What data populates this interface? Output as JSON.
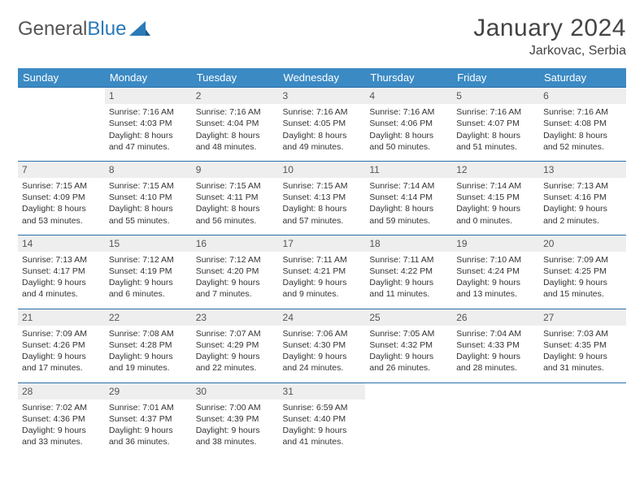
{
  "logo": {
    "text1": "General",
    "text2": "Blue"
  },
  "title": "January 2024",
  "location": "Jarkovac, Serbia",
  "headers": [
    "Sunday",
    "Monday",
    "Tuesday",
    "Wednesday",
    "Thursday",
    "Friday",
    "Saturday"
  ],
  "colors": {
    "header_bg": "#3b8ac4",
    "header_fg": "#ffffff",
    "border": "#2a6ea8",
    "daynum_bg": "#eeeeee",
    "text": "#333333",
    "background": "#ffffff"
  },
  "days": [
    {
      "n": "",
      "sunrise": "",
      "sunset": "",
      "daylight1": "",
      "daylight2": "",
      "empty": true
    },
    {
      "n": "1",
      "sunrise": "Sunrise: 7:16 AM",
      "sunset": "Sunset: 4:03 PM",
      "daylight1": "Daylight: 8 hours",
      "daylight2": "and 47 minutes."
    },
    {
      "n": "2",
      "sunrise": "Sunrise: 7:16 AM",
      "sunset": "Sunset: 4:04 PM",
      "daylight1": "Daylight: 8 hours",
      "daylight2": "and 48 minutes."
    },
    {
      "n": "3",
      "sunrise": "Sunrise: 7:16 AM",
      "sunset": "Sunset: 4:05 PM",
      "daylight1": "Daylight: 8 hours",
      "daylight2": "and 49 minutes."
    },
    {
      "n": "4",
      "sunrise": "Sunrise: 7:16 AM",
      "sunset": "Sunset: 4:06 PM",
      "daylight1": "Daylight: 8 hours",
      "daylight2": "and 50 minutes."
    },
    {
      "n": "5",
      "sunrise": "Sunrise: 7:16 AM",
      "sunset": "Sunset: 4:07 PM",
      "daylight1": "Daylight: 8 hours",
      "daylight2": "and 51 minutes."
    },
    {
      "n": "6",
      "sunrise": "Sunrise: 7:16 AM",
      "sunset": "Sunset: 4:08 PM",
      "daylight1": "Daylight: 8 hours",
      "daylight2": "and 52 minutes."
    },
    {
      "n": "7",
      "sunrise": "Sunrise: 7:15 AM",
      "sunset": "Sunset: 4:09 PM",
      "daylight1": "Daylight: 8 hours",
      "daylight2": "and 53 minutes."
    },
    {
      "n": "8",
      "sunrise": "Sunrise: 7:15 AM",
      "sunset": "Sunset: 4:10 PM",
      "daylight1": "Daylight: 8 hours",
      "daylight2": "and 55 minutes."
    },
    {
      "n": "9",
      "sunrise": "Sunrise: 7:15 AM",
      "sunset": "Sunset: 4:11 PM",
      "daylight1": "Daylight: 8 hours",
      "daylight2": "and 56 minutes."
    },
    {
      "n": "10",
      "sunrise": "Sunrise: 7:15 AM",
      "sunset": "Sunset: 4:13 PM",
      "daylight1": "Daylight: 8 hours",
      "daylight2": "and 57 minutes."
    },
    {
      "n": "11",
      "sunrise": "Sunrise: 7:14 AM",
      "sunset": "Sunset: 4:14 PM",
      "daylight1": "Daylight: 8 hours",
      "daylight2": "and 59 minutes."
    },
    {
      "n": "12",
      "sunrise": "Sunrise: 7:14 AM",
      "sunset": "Sunset: 4:15 PM",
      "daylight1": "Daylight: 9 hours",
      "daylight2": "and 0 minutes."
    },
    {
      "n": "13",
      "sunrise": "Sunrise: 7:13 AM",
      "sunset": "Sunset: 4:16 PM",
      "daylight1": "Daylight: 9 hours",
      "daylight2": "and 2 minutes."
    },
    {
      "n": "14",
      "sunrise": "Sunrise: 7:13 AM",
      "sunset": "Sunset: 4:17 PM",
      "daylight1": "Daylight: 9 hours",
      "daylight2": "and 4 minutes."
    },
    {
      "n": "15",
      "sunrise": "Sunrise: 7:12 AM",
      "sunset": "Sunset: 4:19 PM",
      "daylight1": "Daylight: 9 hours",
      "daylight2": "and 6 minutes."
    },
    {
      "n": "16",
      "sunrise": "Sunrise: 7:12 AM",
      "sunset": "Sunset: 4:20 PM",
      "daylight1": "Daylight: 9 hours",
      "daylight2": "and 7 minutes."
    },
    {
      "n": "17",
      "sunrise": "Sunrise: 7:11 AM",
      "sunset": "Sunset: 4:21 PM",
      "daylight1": "Daylight: 9 hours",
      "daylight2": "and 9 minutes."
    },
    {
      "n": "18",
      "sunrise": "Sunrise: 7:11 AM",
      "sunset": "Sunset: 4:22 PM",
      "daylight1": "Daylight: 9 hours",
      "daylight2": "and 11 minutes."
    },
    {
      "n": "19",
      "sunrise": "Sunrise: 7:10 AM",
      "sunset": "Sunset: 4:24 PM",
      "daylight1": "Daylight: 9 hours",
      "daylight2": "and 13 minutes."
    },
    {
      "n": "20",
      "sunrise": "Sunrise: 7:09 AM",
      "sunset": "Sunset: 4:25 PM",
      "daylight1": "Daylight: 9 hours",
      "daylight2": "and 15 minutes."
    },
    {
      "n": "21",
      "sunrise": "Sunrise: 7:09 AM",
      "sunset": "Sunset: 4:26 PM",
      "daylight1": "Daylight: 9 hours",
      "daylight2": "and 17 minutes."
    },
    {
      "n": "22",
      "sunrise": "Sunrise: 7:08 AM",
      "sunset": "Sunset: 4:28 PM",
      "daylight1": "Daylight: 9 hours",
      "daylight2": "and 19 minutes."
    },
    {
      "n": "23",
      "sunrise": "Sunrise: 7:07 AM",
      "sunset": "Sunset: 4:29 PM",
      "daylight1": "Daylight: 9 hours",
      "daylight2": "and 22 minutes."
    },
    {
      "n": "24",
      "sunrise": "Sunrise: 7:06 AM",
      "sunset": "Sunset: 4:30 PM",
      "daylight1": "Daylight: 9 hours",
      "daylight2": "and 24 minutes."
    },
    {
      "n": "25",
      "sunrise": "Sunrise: 7:05 AM",
      "sunset": "Sunset: 4:32 PM",
      "daylight1": "Daylight: 9 hours",
      "daylight2": "and 26 minutes."
    },
    {
      "n": "26",
      "sunrise": "Sunrise: 7:04 AM",
      "sunset": "Sunset: 4:33 PM",
      "daylight1": "Daylight: 9 hours",
      "daylight2": "and 28 minutes."
    },
    {
      "n": "27",
      "sunrise": "Sunrise: 7:03 AM",
      "sunset": "Sunset: 4:35 PM",
      "daylight1": "Daylight: 9 hours",
      "daylight2": "and 31 minutes."
    },
    {
      "n": "28",
      "sunrise": "Sunrise: 7:02 AM",
      "sunset": "Sunset: 4:36 PM",
      "daylight1": "Daylight: 9 hours",
      "daylight2": "and 33 minutes."
    },
    {
      "n": "29",
      "sunrise": "Sunrise: 7:01 AM",
      "sunset": "Sunset: 4:37 PM",
      "daylight1": "Daylight: 9 hours",
      "daylight2": "and 36 minutes."
    },
    {
      "n": "30",
      "sunrise": "Sunrise: 7:00 AM",
      "sunset": "Sunset: 4:39 PM",
      "daylight1": "Daylight: 9 hours",
      "daylight2": "and 38 minutes."
    },
    {
      "n": "31",
      "sunrise": "Sunrise: 6:59 AM",
      "sunset": "Sunset: 4:40 PM",
      "daylight1": "Daylight: 9 hours",
      "daylight2": "and 41 minutes."
    },
    {
      "n": "",
      "sunrise": "",
      "sunset": "",
      "daylight1": "",
      "daylight2": "",
      "empty": true
    },
    {
      "n": "",
      "sunrise": "",
      "sunset": "",
      "daylight1": "",
      "daylight2": "",
      "empty": true
    },
    {
      "n": "",
      "sunrise": "",
      "sunset": "",
      "daylight1": "",
      "daylight2": "",
      "empty": true
    }
  ]
}
